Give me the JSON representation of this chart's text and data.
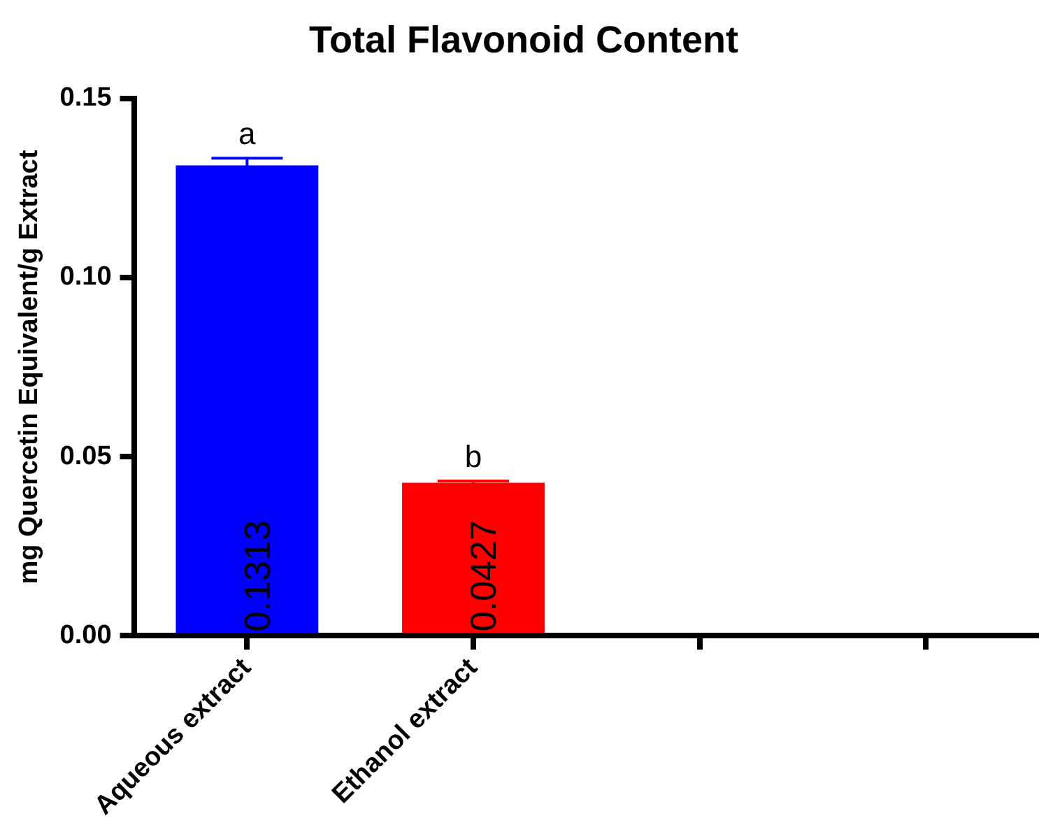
{
  "chart_data": {
    "type": "bar",
    "title": "Total Flavonoid Content",
    "ylabel": "mg Quercetin Equivalent/g Extract",
    "categories": [
      "Aqueous extract",
      "Ethanol extract",
      null,
      null
    ],
    "values": [
      0.1313,
      0.0427,
      null,
      null
    ],
    "colors": [
      "#0000ff",
      "#ff0000",
      "#000000",
      "#000000"
    ],
    "errors": [
      0.002,
      0.0005,
      null,
      null
    ],
    "data_labels": true,
    "ylim": [
      0,
      0.15
    ],
    "yticks": [
      {
        "value": 0,
        "label": "0.00"
      },
      {
        "value": 0.05,
        "label": "0.05"
      },
      {
        "value": 0.1,
        "label": "0.10"
      },
      {
        "value": 0.15,
        "label": "0.15"
      }
    ],
    "annotations": [
      "a",
      "b"
    ],
    "grid": false,
    "legend": false
  }
}
